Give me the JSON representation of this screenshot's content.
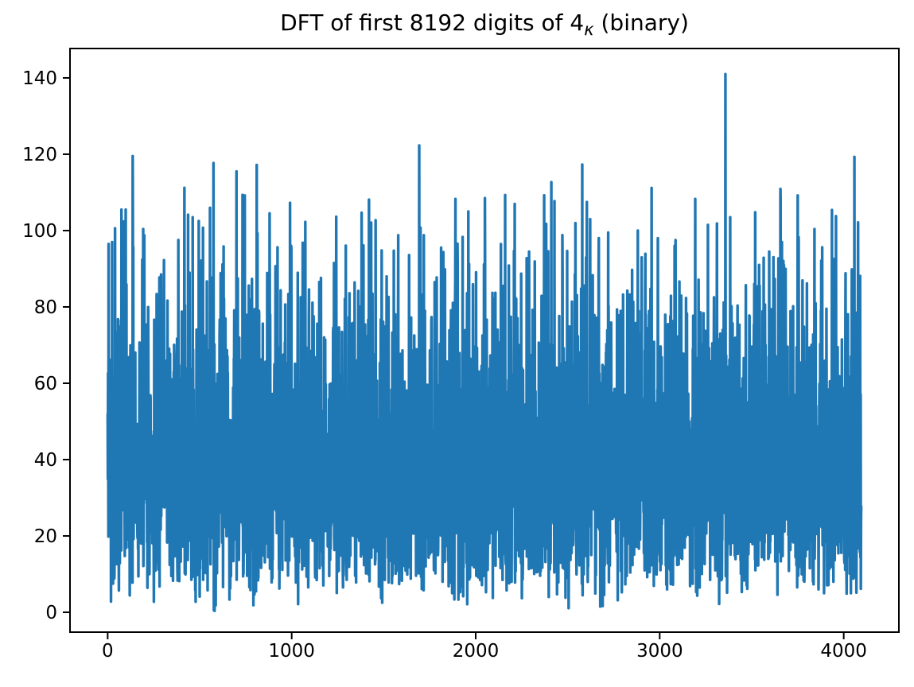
{
  "chart_data": {
    "type": "line",
    "title": "DFT of first 8192 digits of 4κ (binary)",
    "title_parts": {
      "pre": "DFT of first 8192 digits of 4",
      "sub": "κ",
      "post": " (binary)"
    },
    "xlabel": "",
    "ylabel": "",
    "line_color": "#1f77b4",
    "axis_color": "#000000",
    "text_color": "#000000",
    "background_color": "#ffffff",
    "grid": false,
    "legend": null,
    "n_points": 4096,
    "xlim": [
      -204.75,
      4299.75
    ],
    "ylim": [
      -5.2,
      147.7
    ],
    "x_ticks": [
      0,
      1000,
      2000,
      3000,
      4000
    ],
    "y_ticks": [
      0,
      20,
      40,
      60,
      80,
      100,
      120,
      140
    ],
    "noise_model": {
      "description": "DFT magnitude of a pseudo-random binary sequence; Rayleigh-distributed noise band, dense core roughly 15-75, occasional dips near 0",
      "distribution": "rayleigh",
      "sigma": 32,
      "seed": 42,
      "resample_above": 116
    },
    "first_point": [
      0,
      52
    ],
    "notable_peaks": [
      [
        5,
        96.5
      ],
      [
        24,
        97
      ],
      [
        40,
        100.6
      ],
      [
        98,
        105.5
      ],
      [
        136,
        119.5
      ],
      [
        193,
        100.4
      ],
      [
        290,
        88.5
      ],
      [
        417,
        111.2
      ],
      [
        462,
        103.5
      ],
      [
        495,
        102.5
      ],
      [
        575,
        117.7
      ],
      [
        700,
        115.5
      ],
      [
        810,
        117.2
      ],
      [
        880,
        104.5
      ],
      [
        997,
        96
      ],
      [
        1060,
        96.8
      ],
      [
        1230,
        91.5
      ],
      [
        1420,
        108.1
      ],
      [
        1693,
        122.3
      ],
      [
        1890,
        108.3
      ],
      [
        1960,
        105
      ],
      [
        2050,
        108.5
      ],
      [
        2160,
        109.3
      ],
      [
        2290,
        94.5
      ],
      [
        2411,
        112.7
      ],
      [
        2471,
        98.8
      ],
      [
        2579,
        117.3
      ],
      [
        2622,
        103
      ],
      [
        2720,
        99.5
      ],
      [
        2881,
        100
      ],
      [
        2990,
        98
      ],
      [
        3081,
        96
      ],
      [
        3193,
        108.3
      ],
      [
        3262,
        101.5
      ],
      [
        3357,
        141
      ],
      [
        3383,
        103.5
      ],
      [
        3540,
        91
      ],
      [
        3664,
        97
      ],
      [
        3750,
        109.2
      ],
      [
        3841,
        100.4
      ],
      [
        3936,
        105.4
      ],
      [
        4058,
        119.3
      ]
    ]
  }
}
